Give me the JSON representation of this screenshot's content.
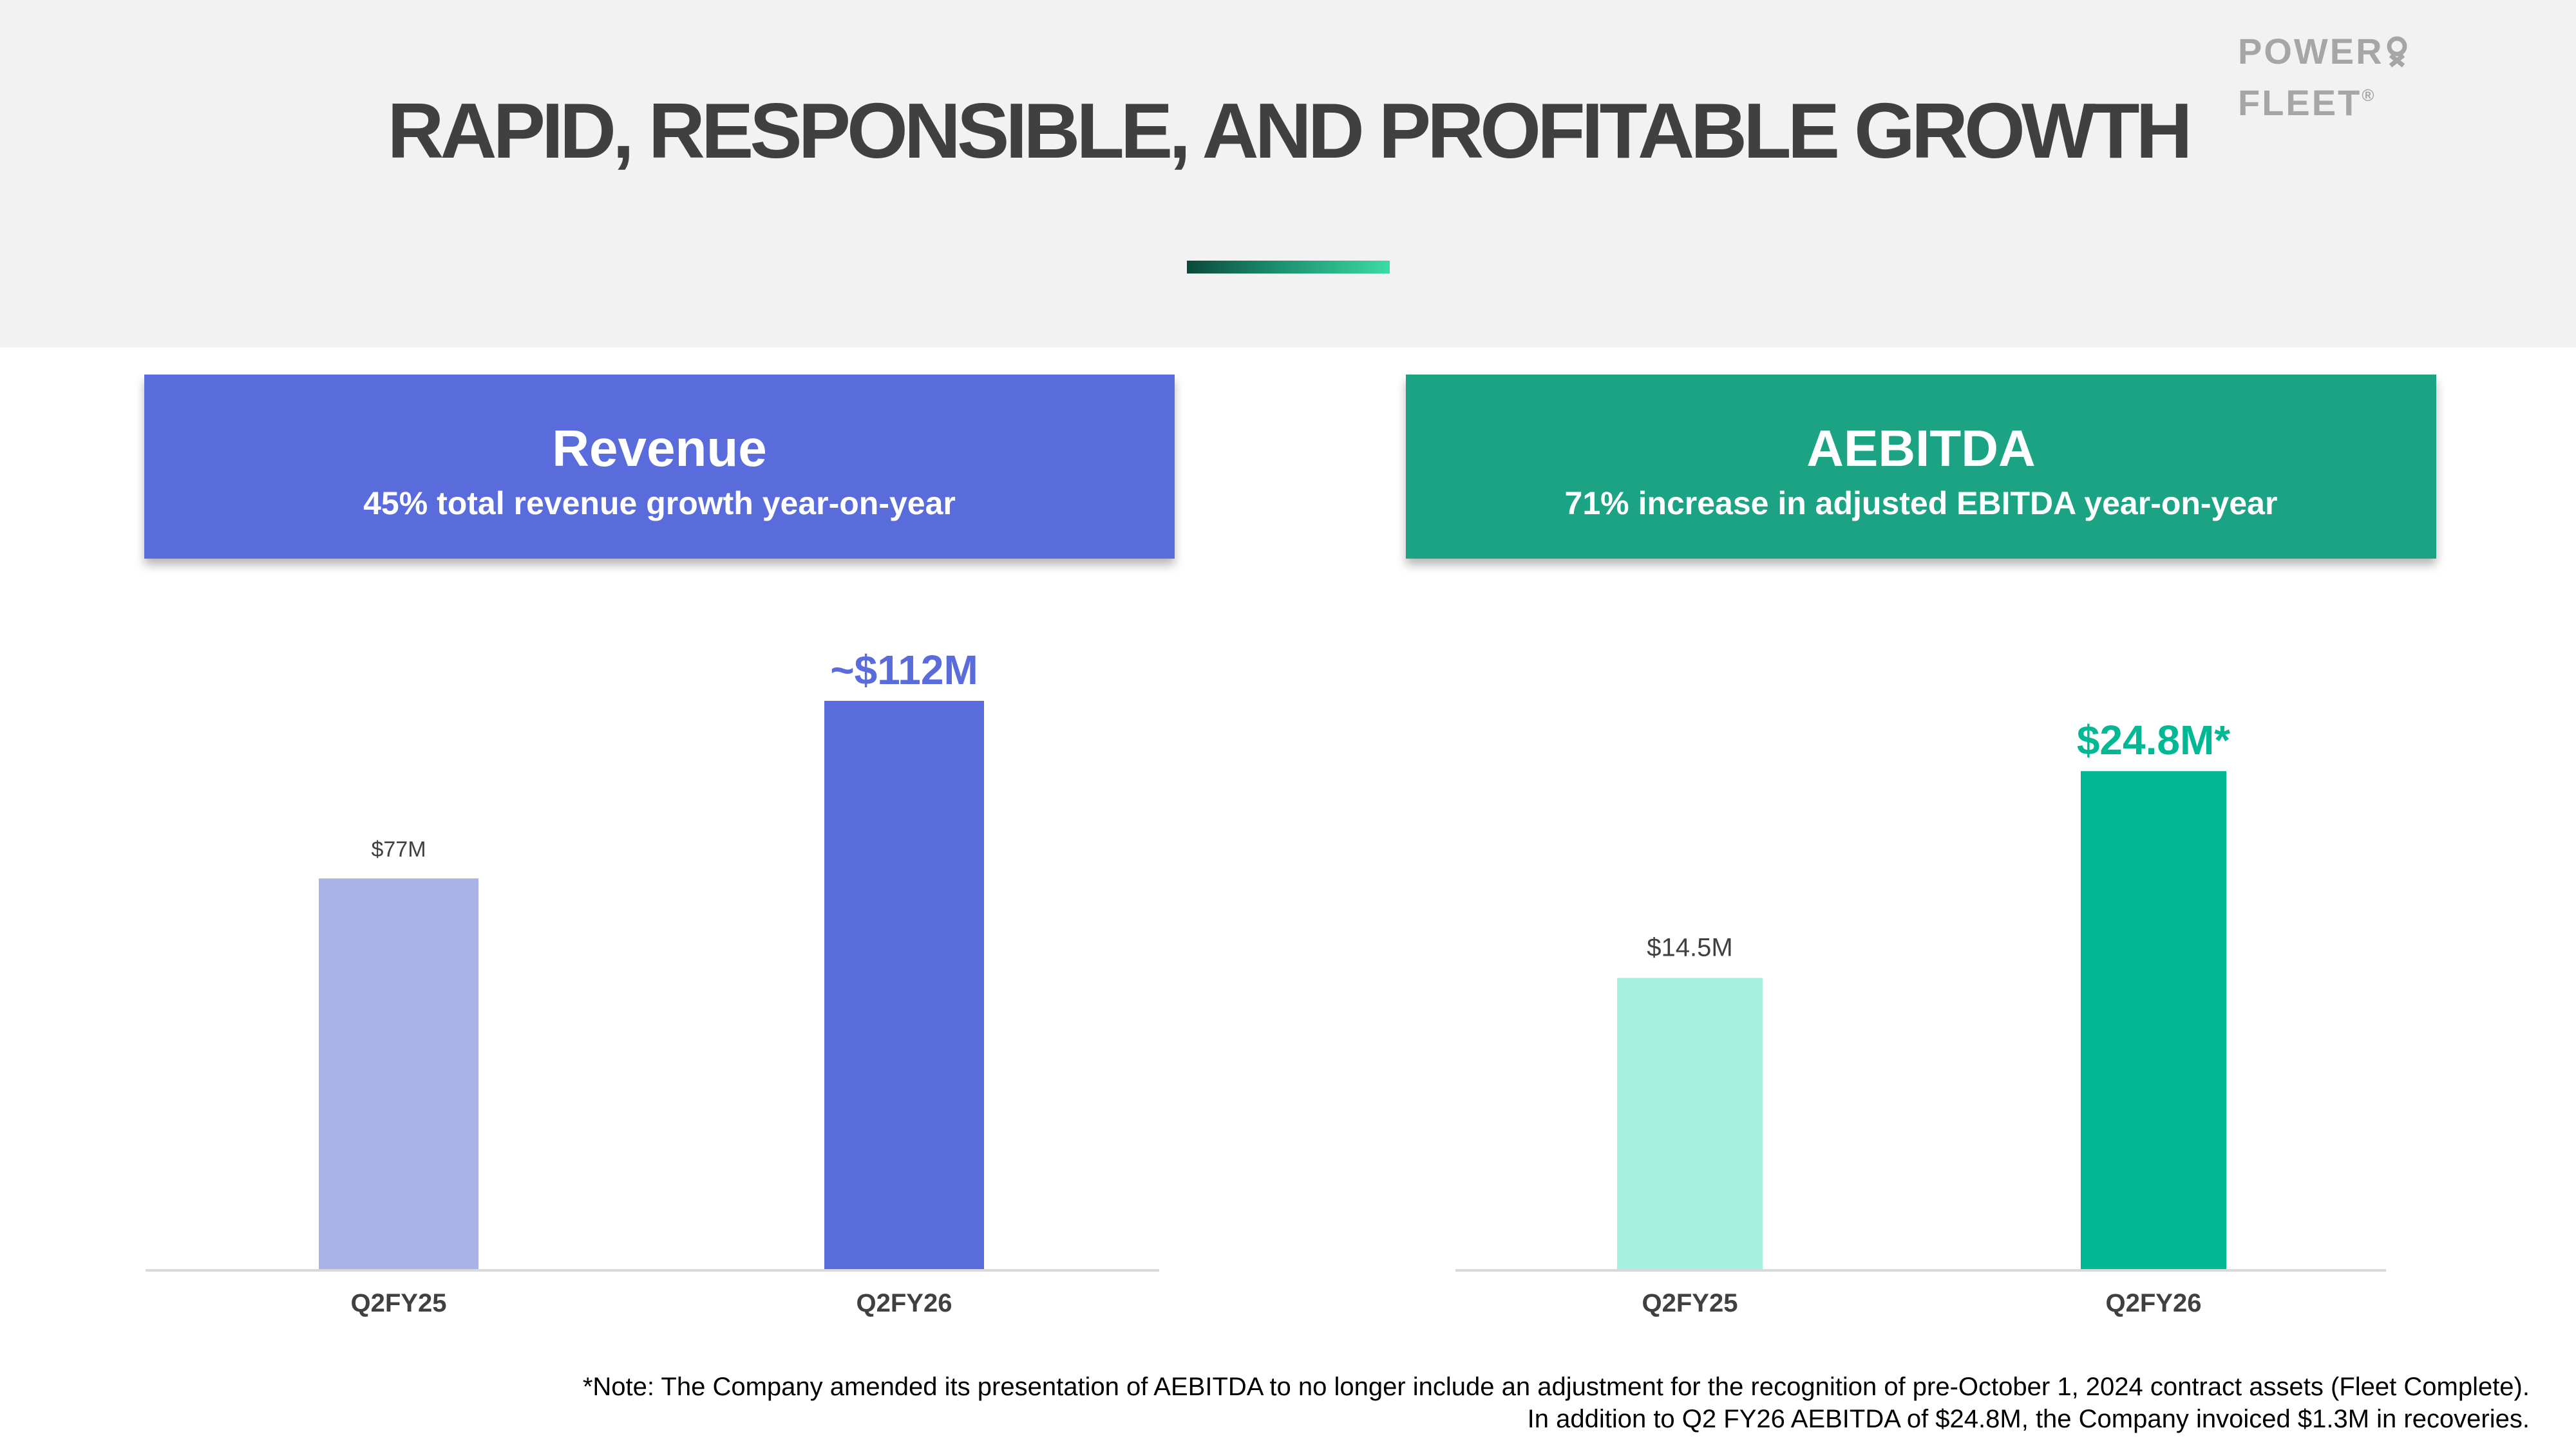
{
  "page": {
    "title": "RAPID, RESPONSIBLE, AND PROFITABLE GROWTH",
    "logo": {
      "left": "POWER",
      "right": "FLEET",
      "reg": "®"
    }
  },
  "cards": {
    "revenue": {
      "title": "Revenue",
      "subtitle": "45% total revenue growth year-on-year"
    },
    "aebitda": {
      "title": "AEBITDA",
      "subtitle": "71% increase in adjusted EBITDA year-on-year"
    }
  },
  "chart_data": [
    {
      "type": "bar",
      "title": "Revenue",
      "categories": [
        "Q2FY25",
        "Q2FY26"
      ],
      "values": [
        77,
        112
      ],
      "labels": [
        "$77M",
        "~$112M"
      ],
      "colors": [
        "#a9b3e8",
        "#5a6cdc"
      ],
      "label_colors": [
        "#404040",
        "#5a6cdc"
      ],
      "ylim": [
        0,
        112
      ],
      "unit": "$M"
    },
    {
      "type": "bar",
      "title": "AEBITDA",
      "categories": [
        "Q2FY25",
        "Q2FY26"
      ],
      "values": [
        14.5,
        24.8
      ],
      "labels": [
        "$14.5M",
        "$24.8M*"
      ],
      "colors": [
        "#a6f0e0",
        "#00b894"
      ],
      "label_colors": [
        "#404040",
        "#00b894"
      ],
      "ylim": [
        0,
        28.3
      ],
      "unit": "$M"
    }
  ],
  "footnote": {
    "line1": "*Note: The Company amended its presentation of AEBITDA to no longer include an adjustment for the recognition of pre-October 1, 2024 contract assets (Fleet Complete).",
    "line2": "In addition to Q2 FY26 AEBITDA of $24.8M, the Company invoiced $1.3M in recoveries."
  }
}
